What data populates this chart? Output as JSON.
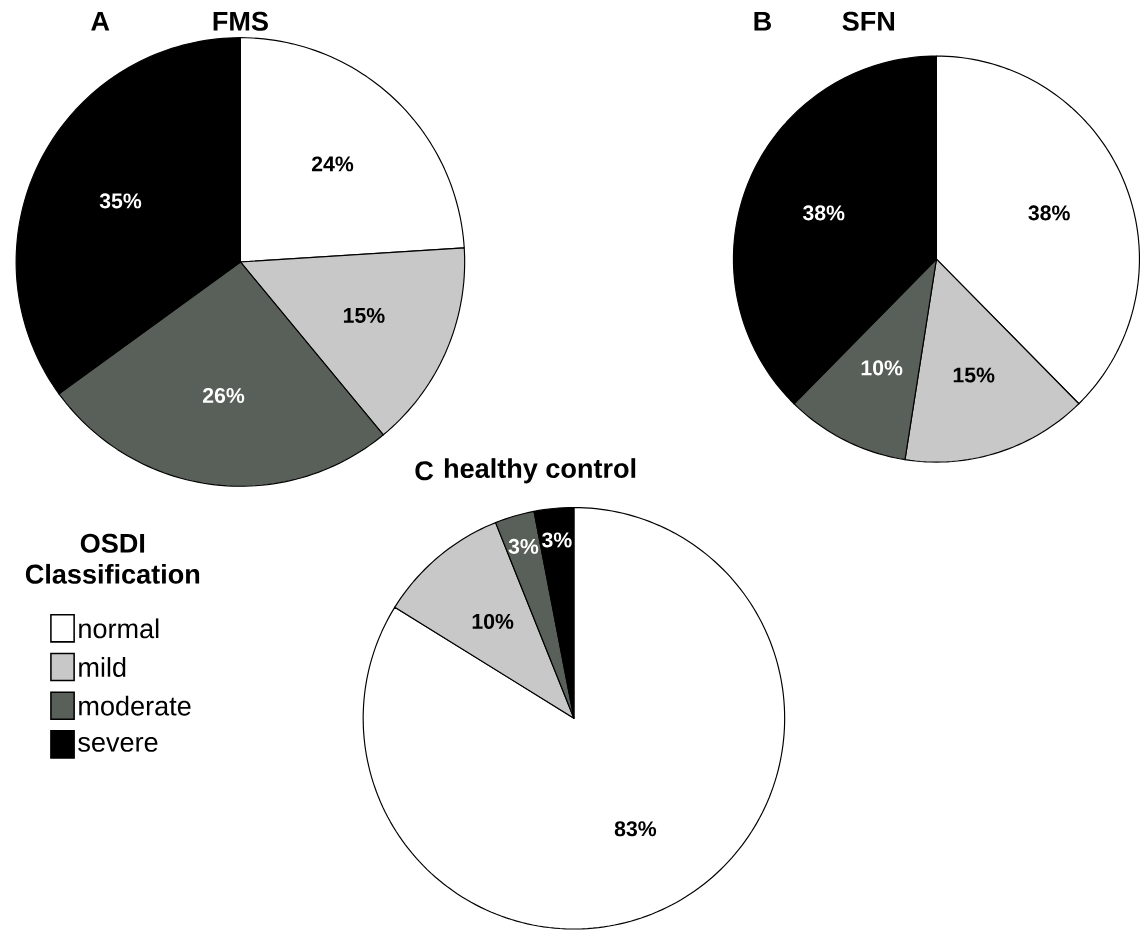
{
  "chart_data": [
    {
      "type": "pie",
      "title": "FMS",
      "annotations": [
        "A"
      ],
      "values": [
        24,
        15,
        26,
        35
      ],
      "colors": [
        "#ffffff",
        "#c8c8c8",
        "#596059",
        "#000000"
      ],
      "value_labels": [
        "24%",
        "15%",
        "26%",
        "35%"
      ],
      "legend": false
    },
    {
      "type": "pie",
      "title": "SFN",
      "annotations": [
        "B"
      ],
      "values": [
        38,
        15,
        10,
        38
      ],
      "colors": [
        "#ffffff",
        "#c8c8c8",
        "#596059",
        "#000000"
      ],
      "value_labels": [
        "38%",
        "15%",
        "10%",
        "38%"
      ],
      "legend": false
    },
    {
      "type": "pie",
      "title": "healthy control",
      "annotations": [
        "C"
      ],
      "categories": [
        "normal",
        "mild",
        "moderate",
        "severe"
      ],
      "values": [
        83,
        10,
        3,
        3
      ],
      "colors": [
        "#ffffff",
        "#c8c8c8",
        "#596059",
        "#000000"
      ],
      "value_labels": [
        "83%",
        "10%",
        "3%",
        "3%"
      ],
      "legend": "left",
      "legend_title": "OSDI Classification"
    }
  ]
}
